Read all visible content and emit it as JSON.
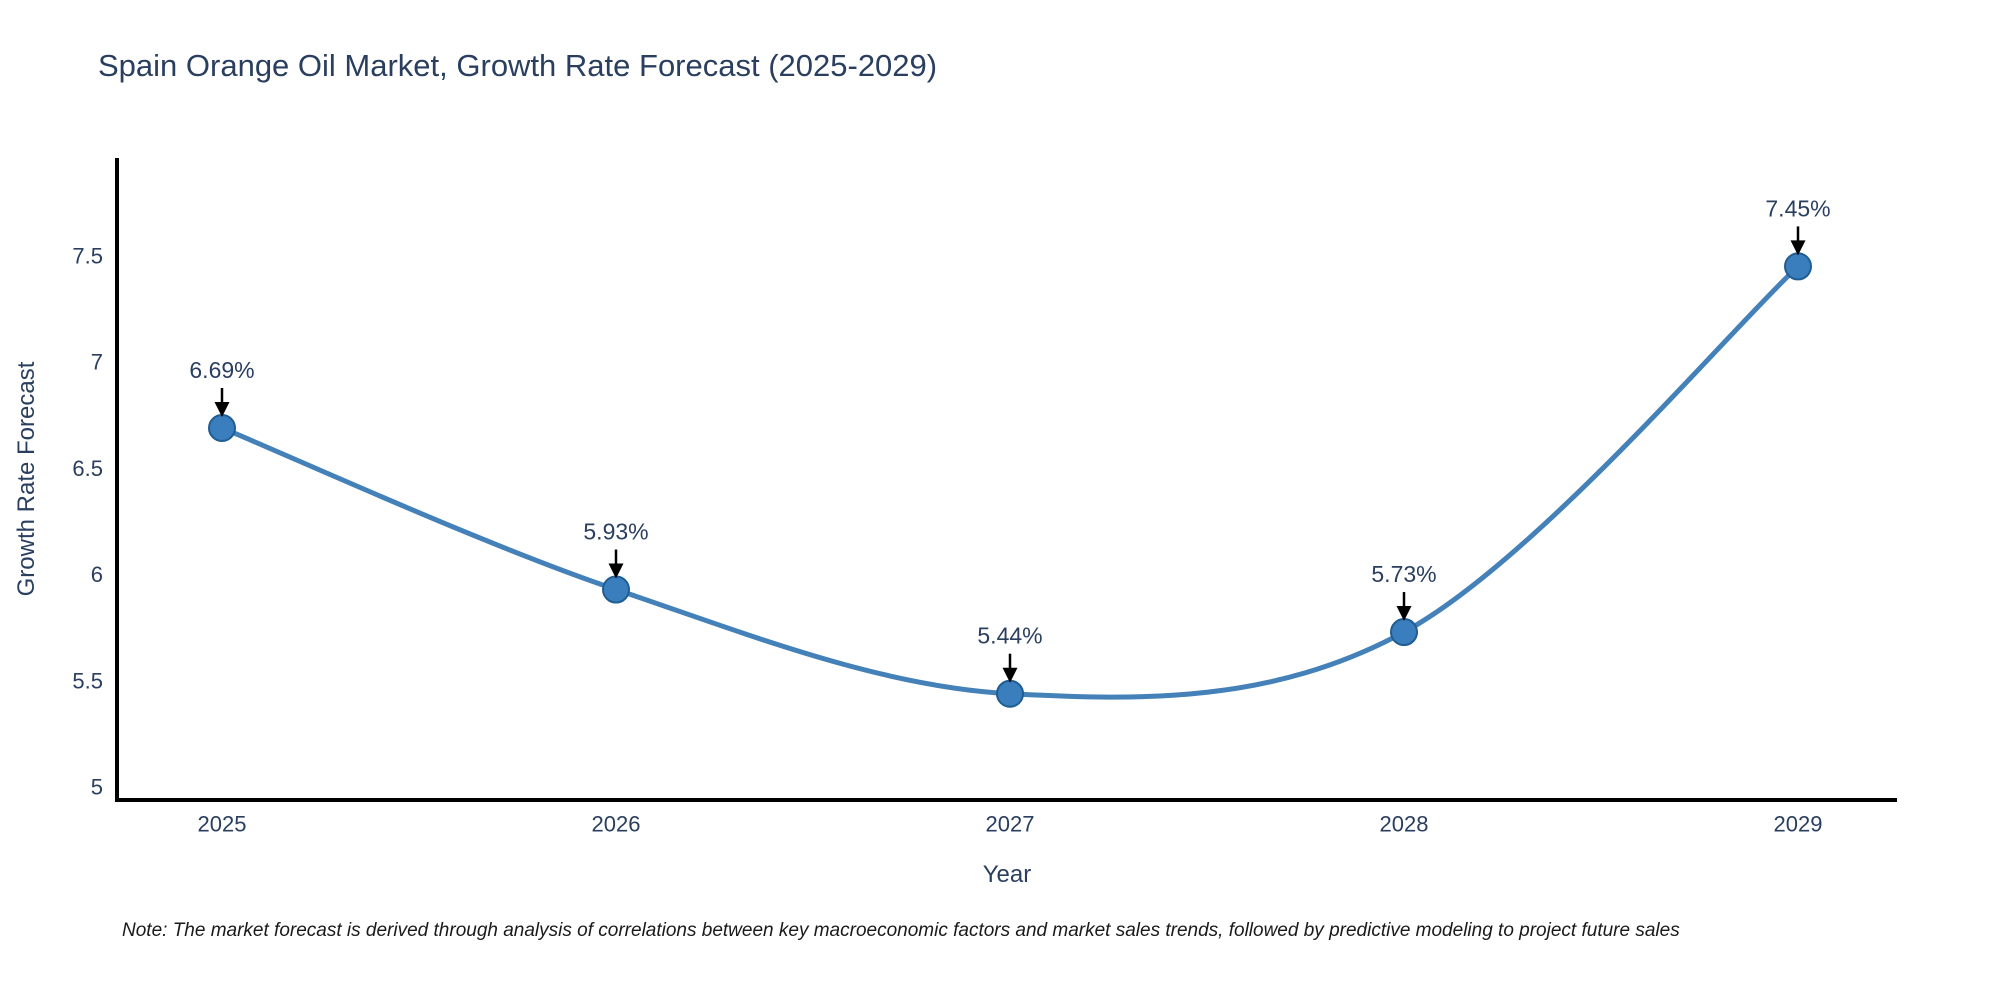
{
  "title": "Spain Orange Oil Market, Growth Rate Forecast (2025-2029)",
  "note": "Note: The market forecast is derived through analysis of correlations between key macroeconomic factors and market sales trends, followed by predictive modeling to project future sales",
  "chart_data": {
    "type": "line",
    "line_shape": "spline",
    "title": "Spain Orange Oil Market, Growth Rate Forecast (2025-2029)",
    "xlabel": "Year",
    "ylabel": "Growth Rate Forecast",
    "categories": [
      "2025",
      "2026",
      "2027",
      "2028",
      "2029"
    ],
    "values": [
      6.69,
      5.93,
      5.44,
      5.73,
      7.45
    ],
    "point_labels": [
      "6.69%",
      "5.93%",
      "5.44%",
      "5.73%",
      "7.45%"
    ],
    "yticks": [
      5,
      5.5,
      6,
      6.5,
      7,
      7.5
    ],
    "ylim": [
      4.94,
      7.96
    ],
    "grid": false,
    "legend": "none",
    "annotations_have_arrows": true,
    "colors": {
      "line": "#4381b8",
      "marker_fill": "#3a7ebe",
      "marker_edge": "#205d92",
      "axis_line": "#000000",
      "text": "#2a3f5f",
      "annotation_arrow": "#000000",
      "background": "#ffffff"
    }
  }
}
